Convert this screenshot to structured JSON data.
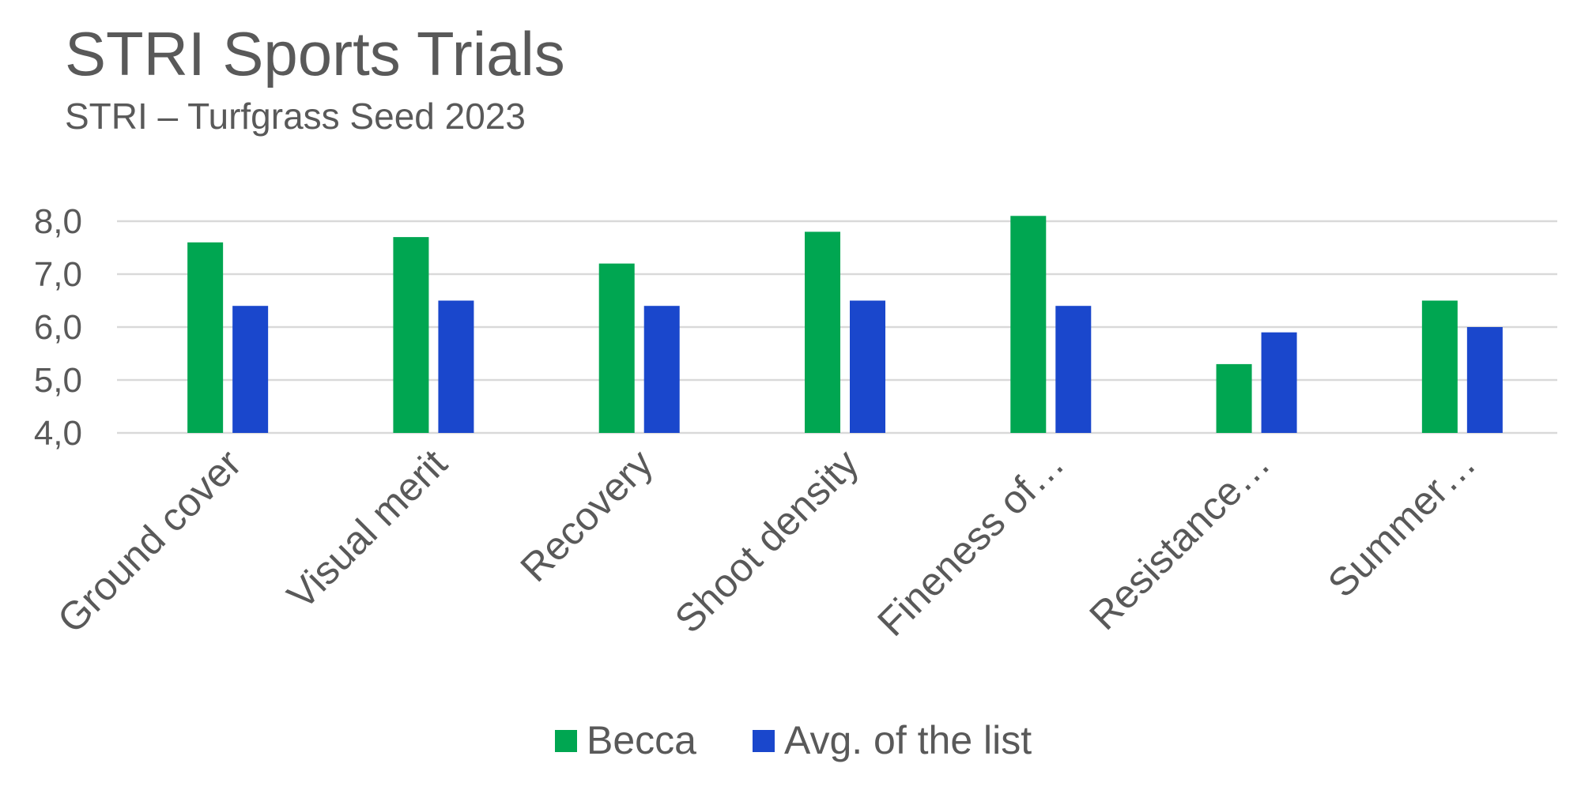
{
  "chart_data": {
    "type": "bar",
    "title": "STRI Sports Trials",
    "subtitle": "STRI – Turfgrass Seed 2023",
    "xlabel": "",
    "ylabel": "",
    "categories": [
      "Ground cover",
      "Visual merit",
      "Recovery",
      "Shoot density",
      "Fineness of…",
      "Resistance…",
      "Summer…"
    ],
    "series": [
      {
        "name": "Becca",
        "color": "#00A651",
        "values": [
          7.6,
          7.7,
          7.2,
          7.8,
          8.1,
          5.3,
          6.5
        ]
      },
      {
        "name": "Avg. of the list",
        "color": "#1A47CC",
        "values": [
          6.4,
          6.5,
          6.4,
          6.5,
          6.4,
          5.9,
          6.0
        ]
      }
    ],
    "ylim": [
      4.0,
      8.0
    ],
    "yticks": [
      "4,0",
      "5,0",
      "6,0",
      "7,0",
      "8,0"
    ],
    "grid": true,
    "legend": "bottom"
  }
}
